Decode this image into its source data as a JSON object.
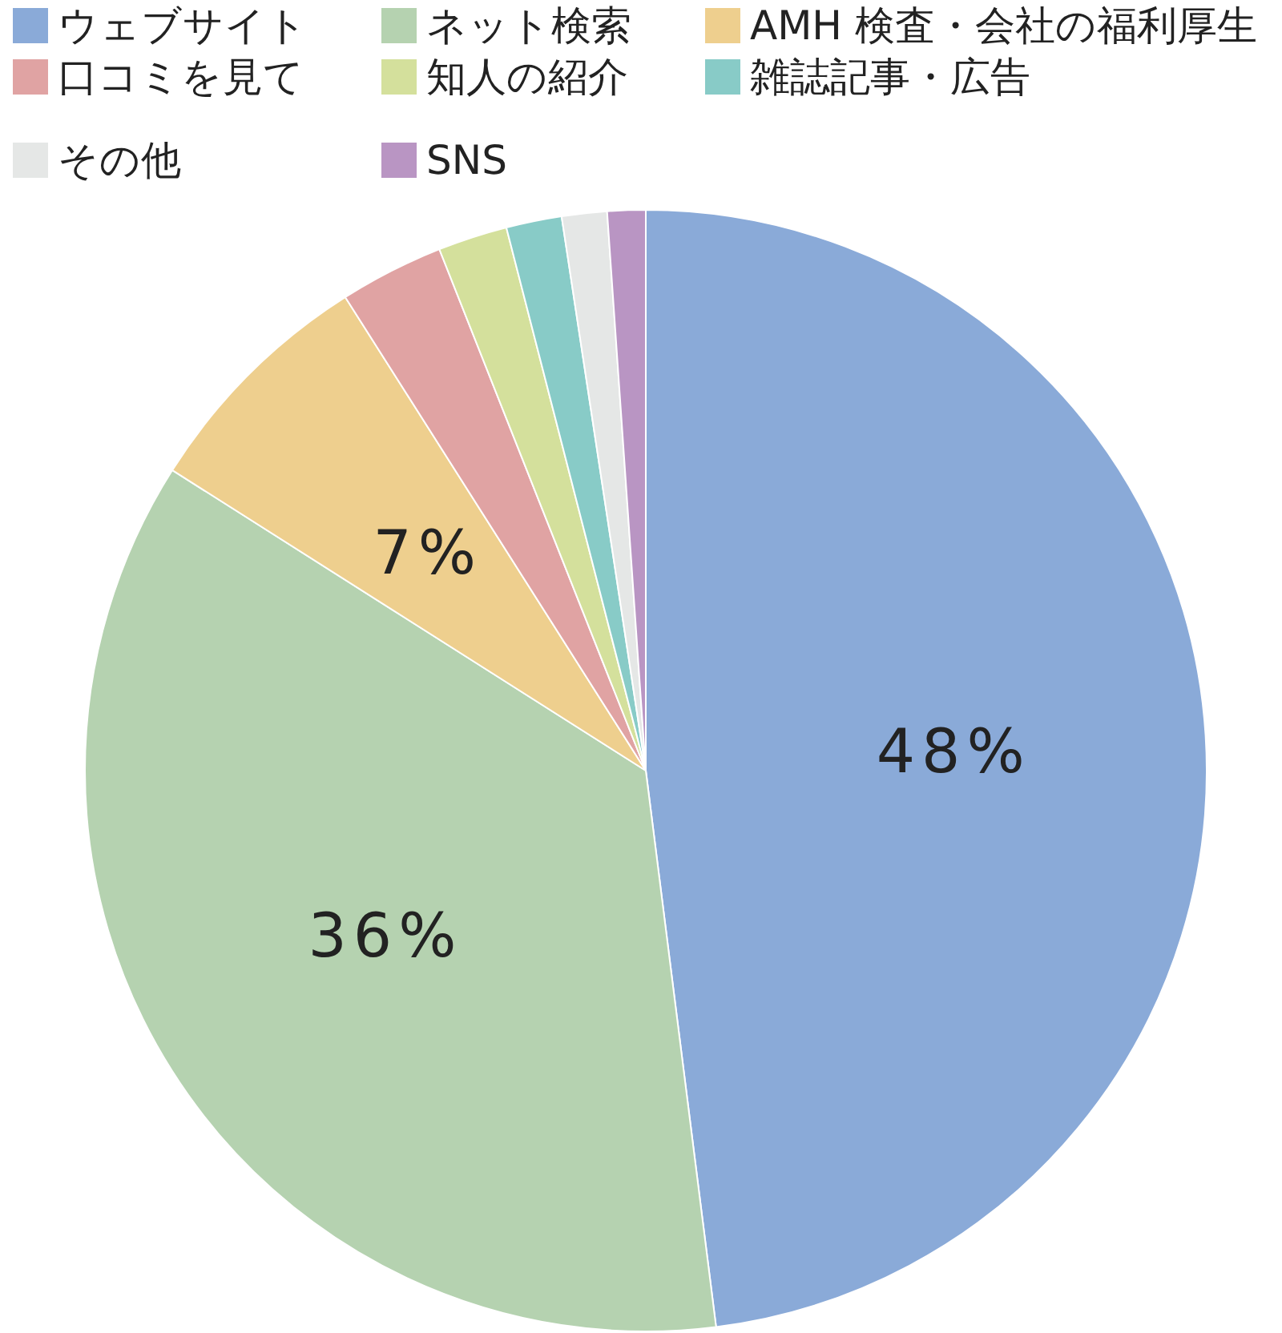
{
  "chart_data": {
    "type": "pie",
    "legend": "top",
    "categories": [
      "ウェブサイト",
      "ネット検索",
      "AMH 検査・会社の福利厚生",
      "口コミを見て",
      "知人の紹介",
      "雑誌記事・広告",
      "その他",
      "SNS"
    ],
    "values": [
      48,
      36,
      7,
      3,
      2,
      1.6,
      1.3,
      1.1
    ],
    "colors": [
      "#8aaad8",
      "#b5d2b0",
      "#eecf8e",
      "#e0a3a3",
      "#d4e09c",
      "#88cbc7",
      "#e5e7e6",
      "#b995c3"
    ],
    "value_labels": [
      "48%",
      "36%",
      "7%",
      null,
      null,
      null,
      null,
      null
    ]
  }
}
